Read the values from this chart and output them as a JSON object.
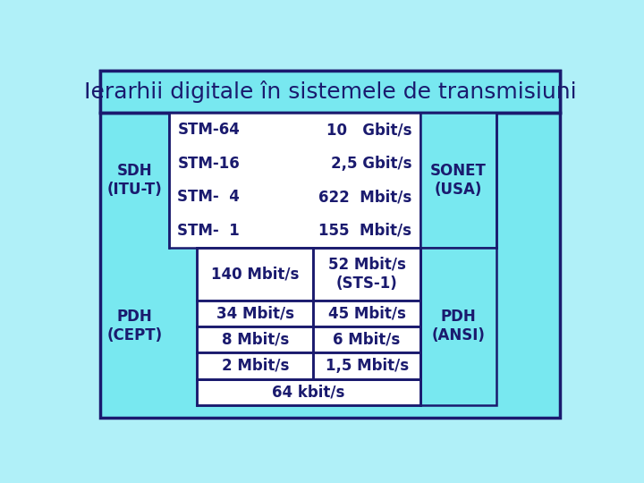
{
  "title": "Ierarhii digitale în sistemele de transmisiuni",
  "outer_bg": "#B0F0F8",
  "inner_bg": "#78E8F0",
  "white": "#FFFFFF",
  "dark": "#1A1A6E",
  "edge": "#1A1A6E",
  "sdh_label": "SDH\n(ITU-T)",
  "pdh_label": "PDH\n(CEPT)",
  "sonet_label": "SONET\n(USA)",
  "pdh_ansi_label": "PDH\n(ANSI)",
  "stm_left": [
    "STM-64",
    "STM-16",
    "STM-  4",
    "STM-  1"
  ],
  "stm_right": [
    "10   Gbit/s",
    "2,5 Gbit/s",
    "622  Mbit/s",
    "155  Mbit/s"
  ],
  "sts1_text": "52 Mbit/s\n(STS-1)",
  "cept_rows": [
    "140 Mbit/s",
    "34 Mbit/s",
    "8 Mbit/s",
    "2 Mbit/s"
  ],
  "ansi_rows": [
    "45 Mbit/s",
    "6 Mbit/s",
    "1,5 Mbit/s"
  ],
  "bottom_row": "64 kbit/s",
  "title_fontsize": 18,
  "label_fontsize": 12,
  "cell_fontsize": 12
}
